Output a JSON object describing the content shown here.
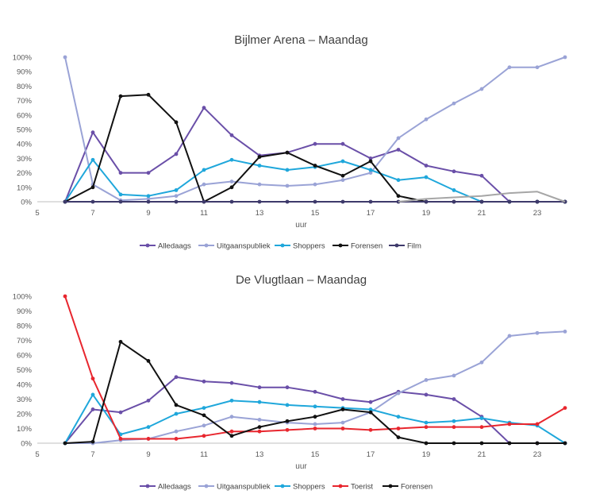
{
  "chart_data": [
    {
      "type": "line",
      "title": "Bijlmer Arena – Maandag",
      "xlabel": "uur",
      "ylabel": "",
      "xlim": [
        5,
        24
      ],
      "ylim": [
        0,
        1
      ],
      "x_ticks": [
        5,
        7,
        9,
        11,
        13,
        15,
        17,
        19,
        21,
        23
      ],
      "y_ticks": [
        "0%",
        "10%",
        "20%",
        "30%",
        "40%",
        "50%",
        "60%",
        "70%",
        "80%",
        "90%",
        "100%"
      ],
      "grid": false,
      "legend": "bottom",
      "x": [
        6,
        7,
        8,
        9,
        10,
        11,
        12,
        13,
        14,
        15,
        16,
        17,
        18,
        19,
        20,
        21,
        22,
        23,
        24
      ],
      "series": [
        {
          "name": "Alledaags",
          "color": "#6a4fa8",
          "values": [
            0,
            0.48,
            0.2,
            0.2,
            0.33,
            0.65,
            0.46,
            0.32,
            0.34,
            0.4,
            0.4,
            0.3,
            0.36,
            0.25,
            0.21,
            0.18,
            0,
            0,
            0
          ]
        },
        {
          "name": "Uitgaanspubliek",
          "color": "#9aa3d6",
          "values": [
            1.0,
            0.12,
            0.01,
            0.02,
            0.04,
            0.12,
            0.14,
            0.12,
            0.11,
            0.12,
            0.15,
            0.2,
            0.44,
            0.57,
            0.68,
            0.78,
            0.93,
            0.93,
            1.0
          ]
        },
        {
          "name": "Shoppers",
          "color": "#1fa7db",
          "values": [
            0,
            0.29,
            0.05,
            0.04,
            0.08,
            0.22,
            0.29,
            0.25,
            0.22,
            0.24,
            0.28,
            0.22,
            0.15,
            0.17,
            0.08,
            0,
            0,
            0,
            0
          ]
        },
        {
          "name": "Forensen",
          "color": "#111111",
          "values": [
            0,
            0.1,
            0.73,
            0.74,
            0.55,
            0,
            0.1,
            0.31,
            0.34,
            0.25,
            0.18,
            0.28,
            0.04,
            0,
            0,
            0,
            0,
            0,
            0
          ]
        },
        {
          "name": "Film",
          "color": "#3e3a6b",
          "values": [
            0,
            0,
            0,
            0,
            0,
            0,
            0,
            0,
            0,
            0,
            0,
            0,
            0,
            0,
            0,
            0,
            0,
            0,
            0
          ]
        },
        {
          "name": "",
          "color": "#a6a6a6",
          "values": [
            null,
            null,
            null,
            null,
            null,
            null,
            null,
            null,
            null,
            null,
            null,
            null,
            0,
            0.02,
            0.03,
            0.04,
            0.06,
            0.07,
            0
          ]
        }
      ]
    },
    {
      "type": "line",
      "title": "De Vlugtlaan – Maandag",
      "xlabel": "uur",
      "ylabel": "",
      "xlim": [
        5,
        24
      ],
      "ylim": [
        0,
        1
      ],
      "x_ticks": [
        5,
        7,
        9,
        11,
        13,
        15,
        17,
        19,
        21,
        23
      ],
      "y_ticks": [
        "0%",
        "10%",
        "20%",
        "30%",
        "40%",
        "50%",
        "60%",
        "70%",
        "80%",
        "90%",
        "100%"
      ],
      "grid": false,
      "legend": "bottom",
      "x": [
        6,
        7,
        8,
        9,
        10,
        11,
        12,
        13,
        14,
        15,
        16,
        17,
        18,
        19,
        20,
        21,
        22,
        23,
        24
      ],
      "series": [
        {
          "name": "Alledaags",
          "color": "#6a4fa8",
          "values": [
            0,
            0.23,
            0.21,
            0.29,
            0.45,
            0.42,
            0.41,
            0.38,
            0.38,
            0.35,
            0.3,
            0.28,
            0.35,
            0.33,
            0.3,
            0.18,
            0,
            0,
            0
          ]
        },
        {
          "name": "Uitgaanspubliek",
          "color": "#9aa3d6",
          "values": [
            0,
            0,
            0.02,
            0.03,
            0.08,
            0.12,
            0.18,
            0.16,
            0.14,
            0.13,
            0.14,
            0.21,
            0.34,
            0.43,
            0.46,
            0.55,
            0.73,
            0.75,
            0.76
          ]
        },
        {
          "name": "Shoppers",
          "color": "#1fa7db",
          "values": [
            0,
            0.33,
            0.06,
            0.11,
            0.2,
            0.24,
            0.29,
            0.28,
            0.26,
            0.25,
            0.24,
            0.23,
            0.18,
            0.14,
            0.15,
            0.17,
            0.14,
            0.12,
            0
          ]
        },
        {
          "name": "Toerist",
          "color": "#e8262e",
          "values": [
            1.0,
            0.44,
            0.03,
            0.03,
            0.03,
            0.05,
            0.08,
            0.08,
            0.09,
            0.1,
            0.1,
            0.09,
            0.1,
            0.11,
            0.11,
            0.11,
            0.13,
            0.13,
            0.24
          ]
        },
        {
          "name": "Forensen",
          "color": "#111111",
          "values": [
            0,
            0.01,
            0.69,
            0.56,
            0.26,
            0.19,
            0.05,
            0.11,
            0.15,
            0.18,
            0.23,
            0.21,
            0.04,
            0,
            0,
            0,
            0,
            0,
            0
          ]
        }
      ]
    }
  ]
}
